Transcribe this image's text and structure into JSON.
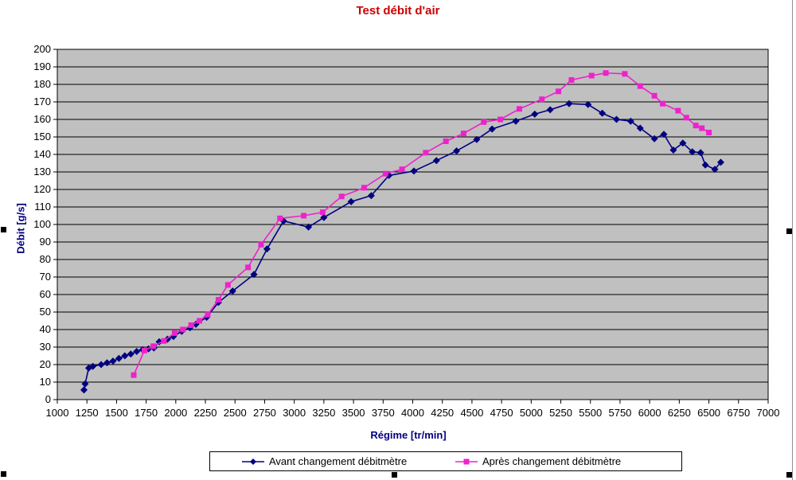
{
  "title": {
    "text": "Test débit d'air",
    "color": "#CC0000"
  },
  "y_axis": {
    "title": "Débit [g/s]",
    "color": "#000080"
  },
  "x_axis": {
    "title": "Régime [tr/min]",
    "color": "#000080"
  },
  "legend": {
    "items": [
      {
        "label": "Avant changement débitmètre",
        "color": "#000080",
        "marker": "diamond"
      },
      {
        "label": "Après changement débitmètre",
        "color": "#EE22CC",
        "marker": "square"
      }
    ]
  },
  "selection_handles": [
    "mid-left",
    "mid-right",
    "bottom-left",
    "bottom-center",
    "bottom-right"
  ],
  "chart_data": {
    "type": "line",
    "title": "Test débit d'air",
    "xlabel": "Régime [tr/min]",
    "ylabel": "Débit [g/s]",
    "xlim": [
      1000,
      7000
    ],
    "ylim": [
      0,
      200
    ],
    "x_ticks": [
      1000,
      1250,
      1500,
      1750,
      2000,
      2250,
      2500,
      2750,
      3000,
      3250,
      3500,
      3750,
      4000,
      4250,
      4500,
      4750,
      5000,
      5250,
      5500,
      5750,
      6000,
      6250,
      6500,
      6750,
      7000
    ],
    "y_ticks": [
      0,
      10,
      20,
      30,
      40,
      50,
      60,
      70,
      80,
      90,
      100,
      110,
      120,
      130,
      140,
      150,
      160,
      170,
      180,
      190,
      200
    ],
    "grid": true,
    "plot_bg": "#C0C0C0",
    "grid_color": "#000000",
    "legend_position": "bottom",
    "series": [
      {
        "name": "Avant changement débitmètre",
        "color": "#000080",
        "marker": "diamond",
        "points": [
          [
            1225,
            5.5
          ],
          [
            1235,
            9
          ],
          [
            1265,
            18
          ],
          [
            1300,
            19
          ],
          [
            1370,
            20
          ],
          [
            1420,
            21
          ],
          [
            1470,
            22
          ],
          [
            1520,
            23.5
          ],
          [
            1570,
            25
          ],
          [
            1620,
            26
          ],
          [
            1670,
            27.5
          ],
          [
            1720,
            28.5
          ],
          [
            1770,
            29
          ],
          [
            1815,
            29.5
          ],
          [
            1860,
            33
          ],
          [
            1930,
            34.5
          ],
          [
            1980,
            36
          ],
          [
            2050,
            39
          ],
          [
            2120,
            41
          ],
          [
            2170,
            43
          ],
          [
            2260,
            47
          ],
          [
            2360,
            55.5
          ],
          [
            2480,
            62
          ],
          [
            2660,
            71.5
          ],
          [
            2770,
            86
          ],
          [
            2910,
            102
          ],
          [
            3120,
            98.5
          ],
          [
            3250,
            104
          ],
          [
            3480,
            113
          ],
          [
            3650,
            116.5
          ],
          [
            3800,
            128
          ],
          [
            4010,
            130.5
          ],
          [
            4200,
            136.5
          ],
          [
            4370,
            142
          ],
          [
            4540,
            148.5
          ],
          [
            4670,
            154.5
          ],
          [
            4870,
            159
          ],
          [
            5030,
            163
          ],
          [
            5160,
            165.5
          ],
          [
            5320,
            169
          ],
          [
            5480,
            168.5
          ],
          [
            5600,
            163.5
          ],
          [
            5720,
            160
          ],
          [
            5840,
            159
          ],
          [
            5920,
            155
          ],
          [
            6040,
            149
          ],
          [
            6120,
            151.5
          ],
          [
            6200,
            142.5
          ],
          [
            6280,
            146.5
          ],
          [
            6360,
            141.5
          ],
          [
            6430,
            141
          ],
          [
            6470,
            134
          ],
          [
            6550,
            131.5
          ],
          [
            6600,
            135.5
          ]
        ]
      },
      {
        "name": "Après changement débitmètre",
        "color": "#EE22CC",
        "marker": "square",
        "points": [
          [
            1645,
            14
          ],
          [
            1735,
            28
          ],
          [
            1810,
            30.5
          ],
          [
            1900,
            33.5
          ],
          [
            1990,
            38
          ],
          [
            2060,
            40
          ],
          [
            2130,
            42.5
          ],
          [
            2200,
            45
          ],
          [
            2270,
            48.5
          ],
          [
            2360,
            57
          ],
          [
            2440,
            65.5
          ],
          [
            2610,
            75.5
          ],
          [
            2720,
            88.5
          ],
          [
            2880,
            103.5
          ],
          [
            3080,
            105
          ],
          [
            3240,
            107
          ],
          [
            3400,
            116
          ],
          [
            3590,
            121
          ],
          [
            3770,
            129
          ],
          [
            3910,
            131.5
          ],
          [
            4110,
            141
          ],
          [
            4280,
            147.5
          ],
          [
            4430,
            152
          ],
          [
            4600,
            158.5
          ],
          [
            4740,
            160
          ],
          [
            4900,
            166
          ],
          [
            5090,
            171.5
          ],
          [
            5230,
            176
          ],
          [
            5340,
            182.5
          ],
          [
            5510,
            185
          ],
          [
            5630,
            186.5
          ],
          [
            5790,
            186
          ],
          [
            5920,
            179
          ],
          [
            6040,
            173.5
          ],
          [
            6110,
            169
          ],
          [
            6240,
            165
          ],
          [
            6310,
            161
          ],
          [
            6390,
            156.5
          ],
          [
            6440,
            155
          ],
          [
            6500,
            152.5
          ]
        ]
      }
    ]
  }
}
